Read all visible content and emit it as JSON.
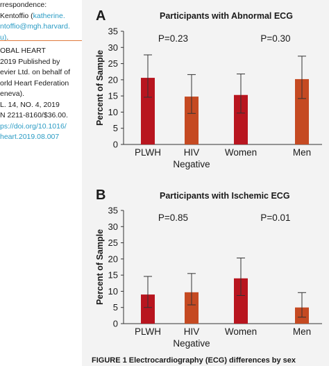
{
  "sidebar": {
    "correspondence": {
      "lines": [
        {
          "text": "rrespondence:",
          "teal": false
        },
        {
          "text": "Kentoffio (",
          "teal": false,
          "link": "katherine."
        },
        {
          "text": "ntoffio@mgh.harvard.",
          "teal": true
        },
        {
          "text": "u)",
          "teal": true,
          "suffix": "."
        }
      ]
    },
    "journal": {
      "lines": [
        {
          "text": "OBAL HEART",
          "teal": false
        },
        {
          "text": "2019 Published by",
          "teal": false
        },
        {
          "text": "evier Ltd. on behalf of",
          "teal": false
        },
        {
          "text": "orld Heart Federation",
          "teal": false
        },
        {
          "text": "eneva).",
          "teal": false
        },
        {
          "text": "L. 14, NO. 4, 2019",
          "teal": false
        },
        {
          "text": "N 2211-8160/$36.00.",
          "teal": false
        },
        {
          "text": "ps://doi.org/10.1016/",
          "teal": true
        },
        {
          "text": "heart.2019.08.007",
          "teal": true
        }
      ]
    }
  },
  "caption": "FIGURE 1 Electrocardiography (ECG) differences by sex",
  "chart_data": [
    {
      "type": "bar",
      "panel": "A",
      "title": "Participants with Abnormal ECG",
      "ylabel": "Percent of Sample",
      "ylim": [
        0,
        35
      ],
      "yticks": [
        0,
        5,
        10,
        15,
        20,
        25,
        30,
        35
      ],
      "categories": [
        "PLWH",
        "HIV Negative",
        "Women",
        "Men"
      ],
      "category_lines": [
        [
          "PLWH"
        ],
        [
          "HIV",
          "Negative"
        ],
        [
          "Women"
        ],
        [
          "Men"
        ]
      ],
      "values": [
        20.6,
        14.8,
        15.3,
        20.2
      ],
      "error_low": [
        14.6,
        9.6,
        9.7,
        14.2
      ],
      "error_high": [
        27.7,
        21.6,
        21.8,
        27.3
      ],
      "colors": [
        "#b8151f",
        "#c54a22",
        "#b8151f",
        "#c54a22"
      ],
      "pvalues": [
        {
          "label": "P=0.23",
          "pair": [
            0,
            1
          ]
        },
        {
          "label": "P=0.30",
          "pair": [
            2,
            3
          ]
        }
      ]
    },
    {
      "type": "bar",
      "panel": "B",
      "title": "Participants with Ischemic ECG",
      "ylabel": "Percent of Sample",
      "ylim": [
        0,
        35
      ],
      "yticks": [
        0,
        5,
        10,
        15,
        20,
        25,
        30,
        35
      ],
      "categories": [
        "PLWH",
        "HIV Negative",
        "Women",
        "Men"
      ],
      "category_lines": [
        [
          "PLWH"
        ],
        [
          "HIV",
          "Negative"
        ],
        [
          "Women"
        ],
        [
          "Men"
        ]
      ],
      "values": [
        9.0,
        9.7,
        14.0,
        5.0
      ],
      "error_low": [
        5.0,
        5.8,
        8.7,
        2.0
      ],
      "error_high": [
        14.6,
        15.5,
        20.3,
        9.6
      ],
      "colors": [
        "#b8151f",
        "#c54a22",
        "#b8151f",
        "#c54a22"
      ],
      "pvalues": [
        {
          "label": "P=0.85",
          "pair": [
            0,
            1
          ]
        },
        {
          "label": "P=0.01",
          "pair": [
            2,
            3
          ]
        }
      ]
    }
  ]
}
